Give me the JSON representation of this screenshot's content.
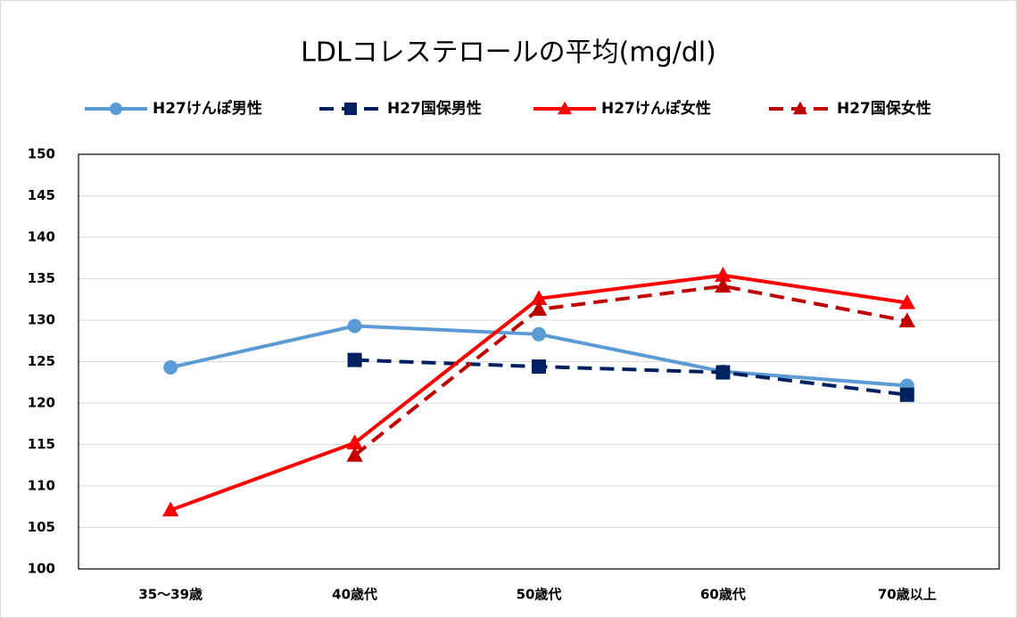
{
  "chart_data": {
    "type": "line",
    "title": "LDLコレステロールの平均(mg/dl)",
    "categories": [
      "35～39歳",
      "40歳代",
      "50歳代",
      "60歳代",
      "70歳以上"
    ],
    "series": [
      {
        "name": "H27けんぽ男性",
        "color": "#5b9bd5",
        "marker": "circle",
        "dashed": false,
        "values": [
          124.3,
          129.3,
          128.3,
          123.8,
          122.1
        ]
      },
      {
        "name": "H27国保男性",
        "color": "#002060",
        "marker": "square",
        "dashed": true,
        "values": [
          null,
          125.2,
          124.4,
          123.7,
          121.0
        ]
      },
      {
        "name": "H27けんぽ女性",
        "color": "#ff0000",
        "marker": "triangle",
        "dashed": false,
        "values": [
          107.1,
          115.2,
          132.6,
          135.4,
          132.1
        ]
      },
      {
        "name": "H27国保女性",
        "color": "#c00000",
        "marker": "triangle",
        "dashed": true,
        "values": [
          null,
          113.7,
          131.3,
          134.1,
          129.9
        ]
      }
    ],
    "ylim": [
      100,
      150
    ],
    "yticks": [
      100,
      105,
      110,
      115,
      120,
      125,
      130,
      135,
      140,
      145,
      150
    ],
    "grid": true
  }
}
